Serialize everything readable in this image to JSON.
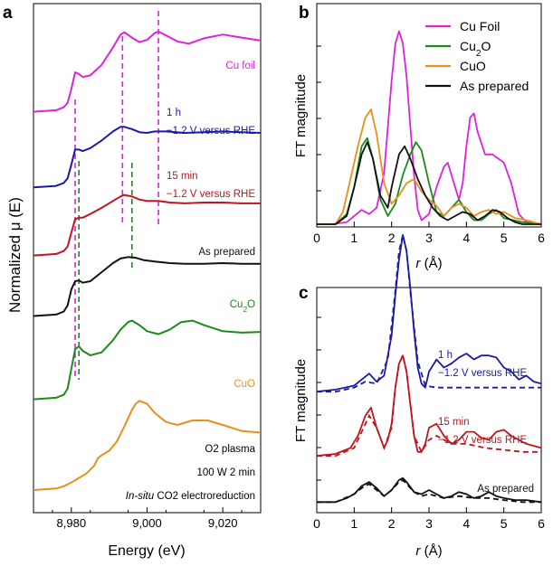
{
  "chart_data": [
    {
      "panel": "a",
      "type": "line",
      "xlabel": "Energy (eV)",
      "ylabel": "Normalized μ (E)",
      "xlim": [
        8970,
        9030
      ],
      "xticks": [
        8980,
        9000,
        9020
      ],
      "xtick_labels": [
        "8,980",
        "9,000",
        "9,020"
      ],
      "colors": {
        "cu_foil": "#e020e0",
        "h1": "#1a1aa8",
        "min15": "#c0141e",
        "as_prepared": "#111111",
        "cu2o": "#1a8a1a",
        "cuo": "#e8901a"
      },
      "series": [
        {
          "key": "cu_foil",
          "name": "Cu foil",
          "label_lines": [
            "Cu foil"
          ],
          "offset": 5.0,
          "x": [
            8970,
            8976,
            8978,
            8979,
            8980,
            8981,
            8982,
            8983,
            8985,
            8988,
            8991,
            8993,
            8994,
            8996,
            8998,
            9000,
            9002,
            9003,
            9005,
            9008,
            9011,
            9015,
            9020,
            9025,
            9030
          ],
          "y": [
            0.0,
            0.02,
            0.06,
            0.12,
            0.3,
            0.52,
            0.5,
            0.46,
            0.48,
            0.62,
            0.85,
            1.02,
            1.05,
            0.98,
            0.92,
            0.95,
            1.04,
            1.06,
            1.01,
            0.93,
            0.9,
            0.97,
            1.02,
            0.98,
            0.94
          ]
        },
        {
          "key": "h1",
          "name": "1 h",
          "label_lines": [
            "1 h",
            "−1.2 V versus RHE"
          ],
          "offset": 4.0,
          "x": [
            8970,
            8976,
            8978,
            8979,
            8980,
            8981,
            8982,
            8983,
            8985,
            8988,
            8991,
            8993,
            8994,
            8996,
            8998,
            9000,
            9002,
            9005,
            9010,
            9015,
            9020,
            9025,
            9030
          ],
          "y": [
            0.0,
            0.02,
            0.06,
            0.12,
            0.3,
            0.5,
            0.5,
            0.48,
            0.52,
            0.62,
            0.74,
            0.8,
            0.8,
            0.77,
            0.73,
            0.72,
            0.74,
            0.74,
            0.72,
            0.73,
            0.74,
            0.73,
            0.72
          ]
        },
        {
          "key": "min15",
          "name": "15 min",
          "label_lines": [
            "15 min",
            "−1.2 V versus RHE"
          ],
          "offset": 3.1,
          "x": [
            8970,
            8976,
            8978,
            8979,
            8980,
            8981,
            8982,
            8983,
            8985,
            8988,
            8991,
            8993,
            8994,
            8996,
            8998,
            9000,
            9003,
            9006,
            9010,
            9015,
            9020,
            9025,
            9030
          ],
          "y": [
            0.0,
            0.02,
            0.06,
            0.12,
            0.3,
            0.48,
            0.5,
            0.5,
            0.55,
            0.63,
            0.72,
            0.78,
            0.8,
            0.78,
            0.74,
            0.72,
            0.72,
            0.7,
            0.69,
            0.7,
            0.7,
            0.69,
            0.69
          ]
        },
        {
          "key": "as_prepared",
          "name": "As prepared",
          "label_lines": [
            "As prepared"
          ],
          "offset": 2.3,
          "x": [
            8970,
            8976,
            8978,
            8979,
            8980,
            8981,
            8982,
            8983,
            8985,
            8988,
            8991,
            8993,
            8995,
            8997,
            8999,
            9002,
            9006,
            9010,
            9015,
            9020,
            9025,
            9030
          ],
          "y": [
            0.0,
            0.02,
            0.06,
            0.14,
            0.35,
            0.46,
            0.47,
            0.44,
            0.46,
            0.58,
            0.7,
            0.76,
            0.78,
            0.77,
            0.74,
            0.72,
            0.7,
            0.69,
            0.69,
            0.7,
            0.69,
            0.69
          ]
        },
        {
          "key": "cu2o",
          "name": "Cu2O",
          "label_lines": [
            "Cu2O"
          ],
          "offset": 1.2,
          "x": [
            8970,
            8976,
            8978,
            8979,
            8980,
            8981,
            8982,
            8983,
            8985,
            8988,
            8991,
            8993,
            8995,
            8996,
            8998,
            9000,
            9003,
            9006,
            9009,
            9012,
            9015,
            9020,
            9025,
            9030
          ],
          "y": [
            0.0,
            0.02,
            0.06,
            0.14,
            0.4,
            0.66,
            0.7,
            0.64,
            0.58,
            0.62,
            0.78,
            0.92,
            1.02,
            1.04,
            0.98,
            0.9,
            0.86,
            0.92,
            1.02,
            1.04,
            0.98,
            0.9,
            0.88,
            0.89
          ]
        },
        {
          "key": "cuo",
          "name": "CuO",
          "label_lines": [
            "CuO"
          ],
          "offset": 0.0,
          "x": [
            8970,
            8976,
            8978,
            8980,
            8982,
            8984,
            8986,
            8987,
            8988,
            8990,
            8992,
            8994,
            8996,
            8997,
            8998,
            9000,
            9002,
            9005,
            9008,
            9012,
            9016,
            9020,
            9025,
            9030
          ],
          "y": [
            0.0,
            0.02,
            0.05,
            0.1,
            0.16,
            0.22,
            0.32,
            0.42,
            0.46,
            0.52,
            0.64,
            0.84,
            1.06,
            1.14,
            1.18,
            1.14,
            1.02,
            0.9,
            0.86,
            0.92,
            0.92,
            0.86,
            0.78,
            0.76
          ]
        }
      ],
      "reference_lines": [
        {
          "x": 8981,
          "color": "#e020e0"
        },
        {
          "x": 8993.5,
          "color": "#e020e0"
        },
        {
          "x": 9003,
          "color": "#e020e0"
        },
        {
          "x": 8982,
          "color": "#1a8a1a"
        },
        {
          "x": 8996,
          "color": "#1a8a1a"
        }
      ],
      "annotations": [
        "O2 plasma",
        "100 W 2 min",
        "In-situ CO2 electroreduction"
      ]
    },
    {
      "panel": "b",
      "type": "line",
      "xlabel": "r (Å)",
      "ylabel": "FT magnitude",
      "xlim": [
        0,
        6
      ],
      "xticks": [
        0,
        1,
        2,
        3,
        4,
        5,
        6
      ],
      "ylim": [
        0,
        1
      ],
      "legend": "top-right",
      "series": [
        {
          "key": "cu_foil",
          "name": "Cu Foil",
          "color": "#e020e0",
          "x": [
            0,
            0.4,
            0.8,
            1.0,
            1.2,
            1.4,
            1.6,
            1.8,
            2.0,
            2.1,
            2.2,
            2.3,
            2.4,
            2.5,
            2.6,
            2.7,
            2.8,
            3.0,
            3.2,
            3.4,
            3.5,
            3.6,
            3.8,
            3.9,
            4.0,
            4.1,
            4.2,
            4.3,
            4.5,
            4.7,
            5.0,
            5.2,
            5.4,
            5.6,
            6.0
          ],
          "y": [
            0.0,
            0.0,
            0.01,
            0.04,
            0.07,
            0.05,
            0.08,
            0.25,
            0.7,
            0.88,
            0.94,
            0.88,
            0.72,
            0.48,
            0.24,
            0.07,
            0.02,
            0.05,
            0.18,
            0.28,
            0.3,
            0.24,
            0.12,
            0.2,
            0.38,
            0.52,
            0.54,
            0.45,
            0.34,
            0.34,
            0.3,
            0.2,
            0.05,
            0.01,
            0.0
          ]
        },
        {
          "key": "cu2o",
          "name": "Cu2O",
          "color": "#1a8a1a",
          "x": [
            0,
            0.5,
            0.8,
            1.0,
            1.2,
            1.35,
            1.5,
            1.7,
            1.9,
            2.1,
            2.3,
            2.5,
            2.65,
            2.8,
            3.0,
            3.2,
            3.4,
            3.6,
            3.8,
            4.0,
            4.2,
            4.4,
            4.6,
            4.8,
            5.0,
            5.5,
            6.0
          ],
          "y": [
            0.0,
            0.0,
            0.05,
            0.18,
            0.38,
            0.42,
            0.32,
            0.12,
            0.04,
            0.1,
            0.24,
            0.34,
            0.4,
            0.36,
            0.2,
            0.06,
            0.04,
            0.08,
            0.12,
            0.06,
            0.02,
            0.02,
            0.05,
            0.07,
            0.03,
            0.01,
            0.0
          ]
        },
        {
          "key": "cuo",
          "name": "CuO",
          "color": "#e8901a",
          "x": [
            0,
            0.5,
            0.7,
            0.9,
            1.1,
            1.3,
            1.45,
            1.6,
            1.8,
            2.0,
            2.2,
            2.4,
            2.6,
            2.8,
            3.0,
            3.2,
            3.4,
            3.6,
            3.8,
            4.0,
            4.2,
            4.4,
            4.6,
            4.8,
            5.0,
            5.3,
            5.6,
            6.0
          ],
          "y": [
            0.0,
            0.0,
            0.06,
            0.22,
            0.38,
            0.52,
            0.56,
            0.44,
            0.2,
            0.1,
            0.14,
            0.2,
            0.22,
            0.16,
            0.12,
            0.09,
            0.04,
            0.08,
            0.1,
            0.08,
            0.04,
            0.06,
            0.07,
            0.05,
            0.06,
            0.03,
            0.02,
            0.0
          ]
        },
        {
          "key": "as_prepared",
          "name": "As prepared",
          "color": "#111111",
          "x": [
            0,
            0.5,
            0.8,
            1.0,
            1.2,
            1.35,
            1.5,
            1.7,
            1.9,
            2.0,
            2.2,
            2.35,
            2.5,
            2.7,
            2.9,
            3.1,
            3.3,
            3.5,
            3.7,
            3.9,
            4.1,
            4.3,
            4.5,
            4.7,
            4.9,
            5.1,
            5.3,
            5.5,
            6.0
          ],
          "y": [
            0.0,
            0.0,
            0.04,
            0.18,
            0.34,
            0.4,
            0.32,
            0.14,
            0.08,
            0.18,
            0.34,
            0.38,
            0.32,
            0.22,
            0.14,
            0.08,
            0.04,
            0.02,
            0.04,
            0.06,
            0.05,
            0.02,
            0.04,
            0.07,
            0.06,
            0.03,
            0.01,
            0.0,
            0.0
          ]
        }
      ]
    },
    {
      "panel": "c",
      "type": "line",
      "xlabel": "r (Å)",
      "ylabel": "FT magnitude",
      "xlim": [
        0,
        6
      ],
      "xticks": [
        0,
        1,
        2,
        3,
        4,
        5,
        6
      ],
      "ylim": [
        0,
        1
      ],
      "style_note": "solid = data, dashed = fit",
      "series": [
        {
          "key": "h1",
          "name": "1 h",
          "label_lines": [
            "1 h",
            "−1.2 V versus RHE"
          ],
          "color": "#1a1aa8",
          "offset": 0.58,
          "x": [
            0,
            0.5,
            1.0,
            1.2,
            1.4,
            1.6,
            1.8,
            2.0,
            2.1,
            2.2,
            2.3,
            2.4,
            2.5,
            2.6,
            2.7,
            2.8,
            2.9,
            3.0,
            3.2,
            3.4,
            3.6,
            3.8,
            4.0,
            4.2,
            4.4,
            4.6,
            4.8,
            5.0,
            5.2,
            5.4,
            5.6,
            5.8,
            6.0
          ],
          "y": [
            0.0,
            0.01,
            0.03,
            0.06,
            0.09,
            0.05,
            0.08,
            0.28,
            0.48,
            0.66,
            0.78,
            0.7,
            0.52,
            0.3,
            0.12,
            0.04,
            0.02,
            0.1,
            0.16,
            0.12,
            0.14,
            0.17,
            0.19,
            0.16,
            0.18,
            0.18,
            0.17,
            0.12,
            0.1,
            0.06,
            0.08,
            0.05,
            0.04
          ],
          "fit_x": [
            0,
            0.5,
            1.0,
            1.3,
            1.6,
            1.9,
            2.1,
            2.2,
            2.3,
            2.4,
            2.5,
            2.7,
            2.9,
            3.2,
            3.6,
            4.0,
            4.5,
            5.0,
            5.5,
            6.0
          ],
          "fit_y": [
            0.0,
            0.0,
            0.02,
            0.05,
            0.04,
            0.16,
            0.5,
            0.7,
            0.78,
            0.7,
            0.5,
            0.15,
            0.03,
            0.02,
            0.02,
            0.02,
            0.02,
            0.02,
            0.02,
            0.02
          ]
        },
        {
          "key": "min15",
          "name": "15 min",
          "label_lines": [
            "15 min",
            "−1.2 V versus RHE"
          ],
          "color": "#c0141e",
          "offset": 0.26,
          "x": [
            0,
            0.5,
            0.9,
            1.1,
            1.3,
            1.45,
            1.6,
            1.8,
            1.9,
            2.0,
            2.1,
            2.2,
            2.3,
            2.4,
            2.5,
            2.6,
            2.7,
            2.8,
            2.9,
            3.0,
            3.2,
            3.4,
            3.6,
            3.8,
            4.0,
            4.2,
            4.4,
            4.6,
            4.8,
            5.0,
            5.2,
            5.4,
            5.6,
            5.8,
            6.0
          ],
          "y": [
            0.0,
            0.01,
            0.04,
            0.1,
            0.2,
            0.24,
            0.14,
            0.04,
            0.08,
            0.16,
            0.34,
            0.46,
            0.5,
            0.42,
            0.26,
            0.1,
            0.02,
            0.02,
            0.06,
            0.14,
            0.16,
            0.1,
            0.06,
            0.08,
            0.12,
            0.12,
            0.09,
            0.08,
            0.12,
            0.13,
            0.1,
            0.08,
            0.06,
            0.05,
            0.04
          ],
          "fit_x": [
            0,
            0.5,
            1.0,
            1.2,
            1.4,
            1.6,
            1.8,
            2.0,
            2.1,
            2.2,
            2.3,
            2.4,
            2.5,
            2.6,
            2.8,
            3.0,
            3.2,
            3.6,
            4.0,
            4.5,
            5.0,
            5.5,
            6.0
          ],
          "fit_y": [
            0.0,
            0.0,
            0.04,
            0.12,
            0.2,
            0.14,
            0.04,
            0.14,
            0.34,
            0.46,
            0.5,
            0.42,
            0.26,
            0.1,
            0.02,
            0.08,
            0.1,
            0.06,
            0.06,
            0.04,
            0.03,
            0.02,
            0.02
          ]
        },
        {
          "key": "as_prepared",
          "name": "As prepared",
          "label_lines": [
            "As prepared"
          ],
          "color": "#111111",
          "offset": 0.03,
          "x": [
            0,
            0.5,
            0.8,
            1.0,
            1.2,
            1.4,
            1.6,
            1.8,
            2.0,
            2.2,
            2.3,
            2.4,
            2.6,
            2.8,
            3.0,
            3.2,
            3.4,
            3.6,
            3.8,
            4.0,
            4.2,
            4.4,
            4.6,
            4.8,
            5.0,
            5.3,
            5.6,
            6.0
          ],
          "y": [
            0.0,
            0.0,
            0.02,
            0.04,
            0.08,
            0.1,
            0.07,
            0.03,
            0.06,
            0.11,
            0.12,
            0.1,
            0.05,
            0.04,
            0.06,
            0.04,
            0.02,
            0.03,
            0.05,
            0.04,
            0.02,
            0.03,
            0.05,
            0.03,
            0.02,
            0.01,
            0.01,
            0.0
          ],
          "fit_x": [
            0,
            0.5,
            1.0,
            1.2,
            1.4,
            1.6,
            1.8,
            2.0,
            2.2,
            2.3,
            2.4,
            2.6,
            2.8,
            3.0,
            3.4,
            3.8,
            4.2,
            4.6,
            5.0,
            5.5,
            6.0
          ],
          "fit_y": [
            0.0,
            0.0,
            0.04,
            0.07,
            0.09,
            0.06,
            0.03,
            0.06,
            0.1,
            0.11,
            0.09,
            0.05,
            0.03,
            0.04,
            0.02,
            0.03,
            0.02,
            0.02,
            0.01,
            0.0,
            0.0
          ]
        }
      ]
    }
  ]
}
